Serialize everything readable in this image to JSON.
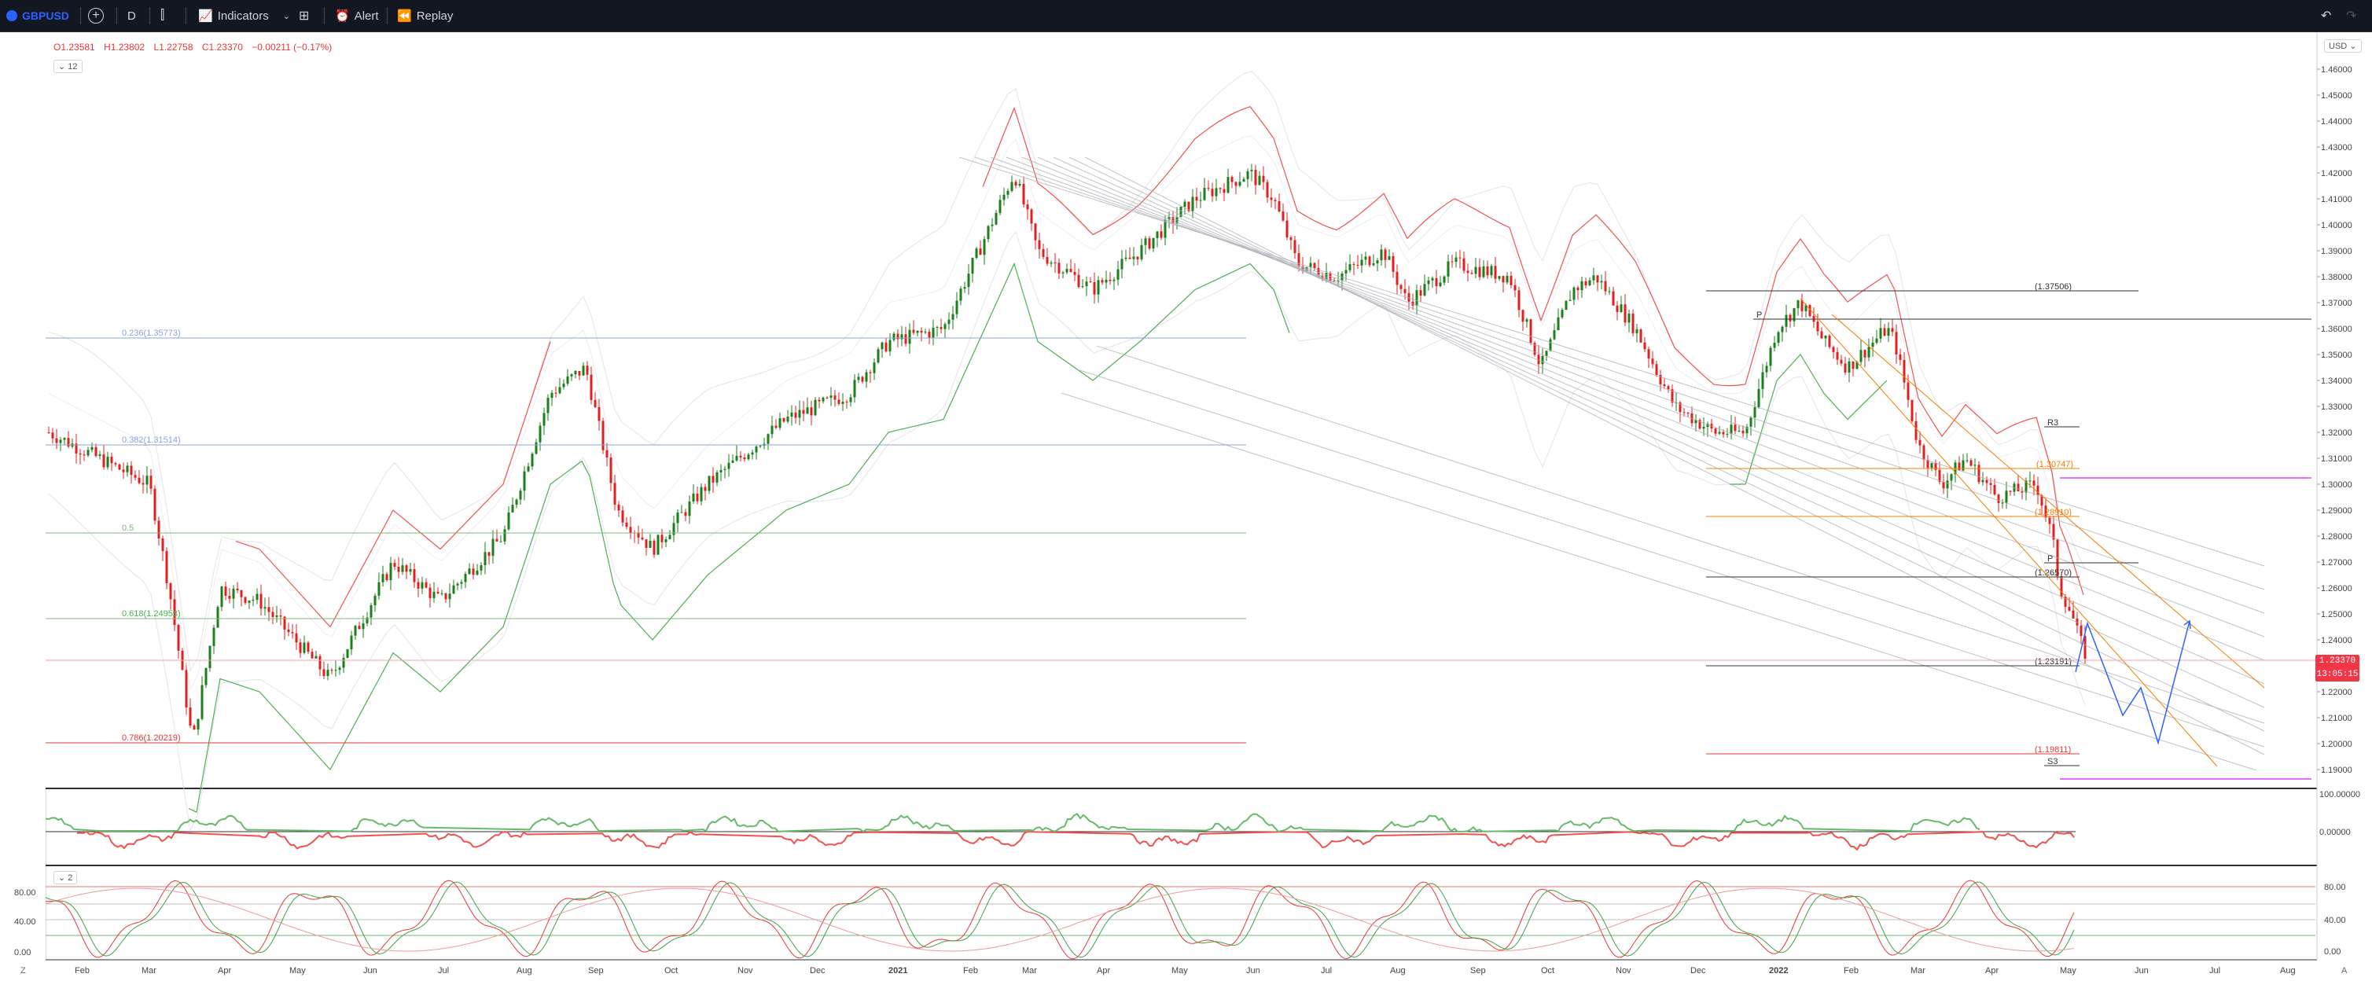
{
  "toolbar": {
    "symbol": "GBPUSD",
    "interval": "D",
    "indicators_label": "Indicators",
    "alert_label": "Alert",
    "replay_label": "Replay"
  },
  "legend": {
    "open": "O1.23581",
    "high": "H1.23802",
    "low": "L1.22758",
    "close": "C1.23370",
    "change": "−0.00211 (−0.17%)",
    "indicator_count": "12",
    "pane3_count": "2"
  },
  "axis": {
    "currency": "USD",
    "price_ticks": [
      "1.46000",
      "1.45000",
      "1.44000",
      "1.43000",
      "1.42000",
      "1.41000",
      "1.40000",
      "1.39000",
      "1.38000",
      "1.37000",
      "1.36000",
      "1.35000",
      "1.34000",
      "1.33000",
      "1.32000",
      "1.31000",
      "1.30000",
      "1.29000",
      "1.28000",
      "1.27000",
      "1.26000",
      "1.25000",
      "1.24000",
      "1.23000",
      "1.22000",
      "1.21000",
      "1.20000",
      "1.19000"
    ],
    "osc_ticks": [
      "100.00000",
      "0.00000"
    ],
    "stoch_ticks": [
      "80.00",
      "40.00",
      "0.00"
    ],
    "stoch_ticks_left": [
      "80.00",
      "40.00",
      "0.00"
    ],
    "time_labels": [
      "Feb",
      "Mar",
      "Apr",
      "May",
      "Jun",
      "Jul",
      "Aug",
      "Sep",
      "Oct",
      "Nov",
      "Dec",
      "2021",
      "Feb",
      "Mar",
      "Apr",
      "May",
      "Jun",
      "Jul",
      "Aug",
      "Sep",
      "Oct",
      "Nov",
      "Dec",
      "2022",
      "Feb",
      "Mar",
      "Apr",
      "May",
      "Jun",
      "Jul",
      "Aug"
    ]
  },
  "price": {
    "last": "1.23370",
    "countdown": "13:05:15"
  },
  "fib_labels_left": [
    "0.236(1.35773)",
    "0.382(1.31514)",
    "0.5",
    "0.618(1.24958)",
    "0.786(1.20219)"
  ],
  "fib_labels_right": [
    "(1.37506)",
    "P",
    "R3",
    "(1.30747)",
    "(1.28910)",
    "(1.26570)",
    "P",
    "(1.23191)",
    "(1.19811)",
    "S3"
  ],
  "corner": {
    "left": "Z",
    "right": "A"
  },
  "colors": {
    "up": "#1b7f1b",
    "down": "#e02020",
    "supertrend_up": "#4caf50",
    "supertrend_down": "#ef5350",
    "fib_orange": "#f57c00",
    "pivot": "#333333",
    "magenta": "#e040fb",
    "projection": "#2962ff",
    "channel": "#b0b3bb"
  }
}
